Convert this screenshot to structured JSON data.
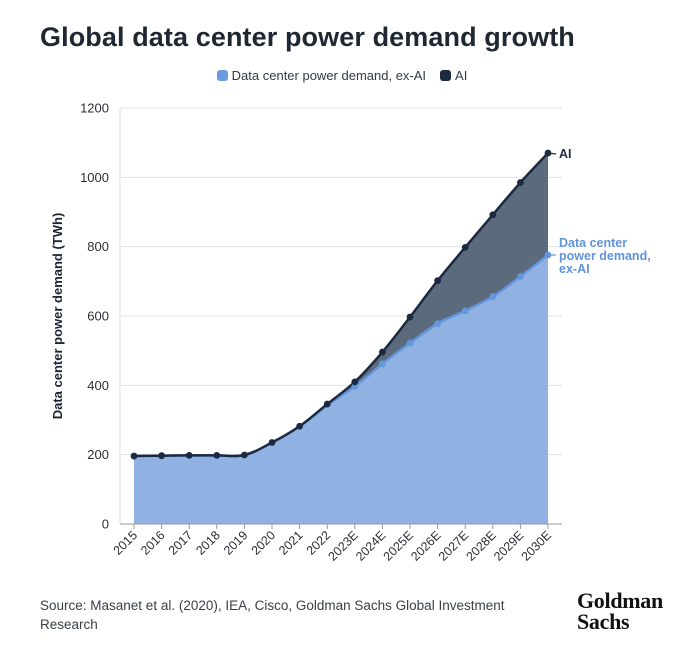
{
  "title": "Global data center power demand growth",
  "colors": {
    "exai_fill": "#8fb2e3",
    "exai_line": "#6496dc",
    "ai_fill": "#5b6a7d",
    "ai_line": "#1b2a40",
    "grid": "#e2e2e2"
  },
  "chart_data": {
    "type": "area",
    "title": "Global data center power demand growth",
    "ylabel": "Data center power demand (TWh)",
    "xlabel": "",
    "ylim": [
      0,
      1200
    ],
    "yticks": [
      0,
      200,
      400,
      600,
      800,
      1000,
      1200
    ],
    "grid": true,
    "legend_position": "top",
    "categories": [
      "2015",
      "2016",
      "2017",
      "2018",
      "2019",
      "2020",
      "2021",
      "2022",
      "2023E",
      "2024E",
      "2025E",
      "2026E",
      "2027E",
      "2028E",
      "2029E",
      "2030E"
    ],
    "series": [
      {
        "name": "Data center power demand, ex-AI",
        "end_label": "Data center power demand, ex-AI",
        "values": [
          196,
          197,
          198,
          198,
          199,
          235,
          282,
          342,
          397,
          462,
          522,
          578,
          615,
          656,
          714,
          776
        ]
      },
      {
        "name": "AI",
        "end_label": "AI",
        "values": [
          196,
          197,
          198,
          198,
          199,
          235,
          282,
          346,
          410,
          496,
          597,
          702,
          798,
          892,
          985,
          1070
        ]
      }
    ]
  },
  "source": "Source: Masanet et al. (2020), IEA, Cisco, Goldman Sachs Global Investment Research",
  "logo": {
    "line1": "Goldman",
    "line2": "Sachs"
  }
}
